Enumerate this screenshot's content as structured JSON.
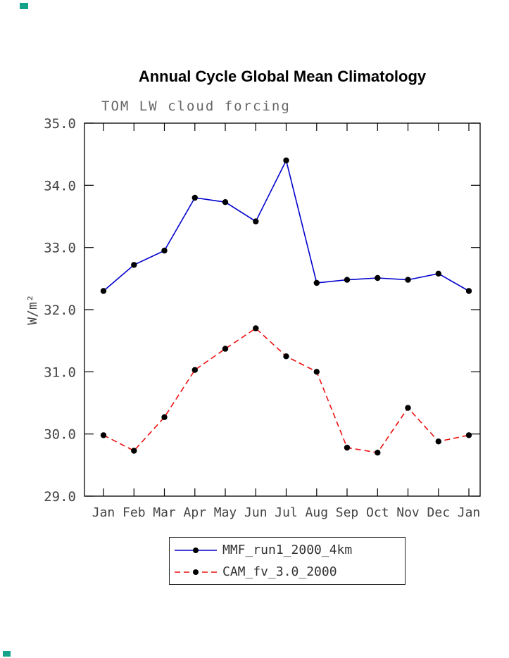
{
  "chart_data": {
    "type": "line",
    "title": "Annual Cycle Global Mean Climatology",
    "subtitle": "TOM LW cloud forcing",
    "ylabel": "W/m²",
    "xlabel": "",
    "categories": [
      "Jan",
      "Feb",
      "Mar",
      "Apr",
      "May",
      "Jun",
      "Jul",
      "Aug",
      "Sep",
      "Oct",
      "Nov",
      "Dec",
      "Jan"
    ],
    "series": [
      {
        "name": "MMF_run1_2000_4km",
        "color": "#0000cc",
        "line_style": "solid",
        "marker": "circle",
        "marker_color": "#000000",
        "values": [
          32.3,
          32.72,
          32.95,
          33.8,
          33.73,
          33.42,
          34.4,
          32.43,
          32.48,
          32.51,
          32.48,
          32.58,
          32.3
        ]
      },
      {
        "name": "CAM_fv_3.0_2000",
        "color": "#ee1111",
        "line_style": "dashed",
        "marker": "circle",
        "marker_color": "#000000",
        "values": [
          29.98,
          29.73,
          30.27,
          31.03,
          31.37,
          31.7,
          31.25,
          31.0,
          29.78,
          29.7,
          30.42,
          29.88,
          29.98
        ]
      }
    ],
    "ylim": [
      29.0,
      35.0
    ],
    "yticks": [
      29.0,
      30.0,
      31.0,
      32.0,
      33.0,
      34.0,
      35.0
    ],
    "grid": false,
    "legend_position": "bottom",
    "frame_color": "#000000",
    "text_color": "#444444"
  },
  "decorations": {
    "corner_mark_color": "#14a38a"
  }
}
